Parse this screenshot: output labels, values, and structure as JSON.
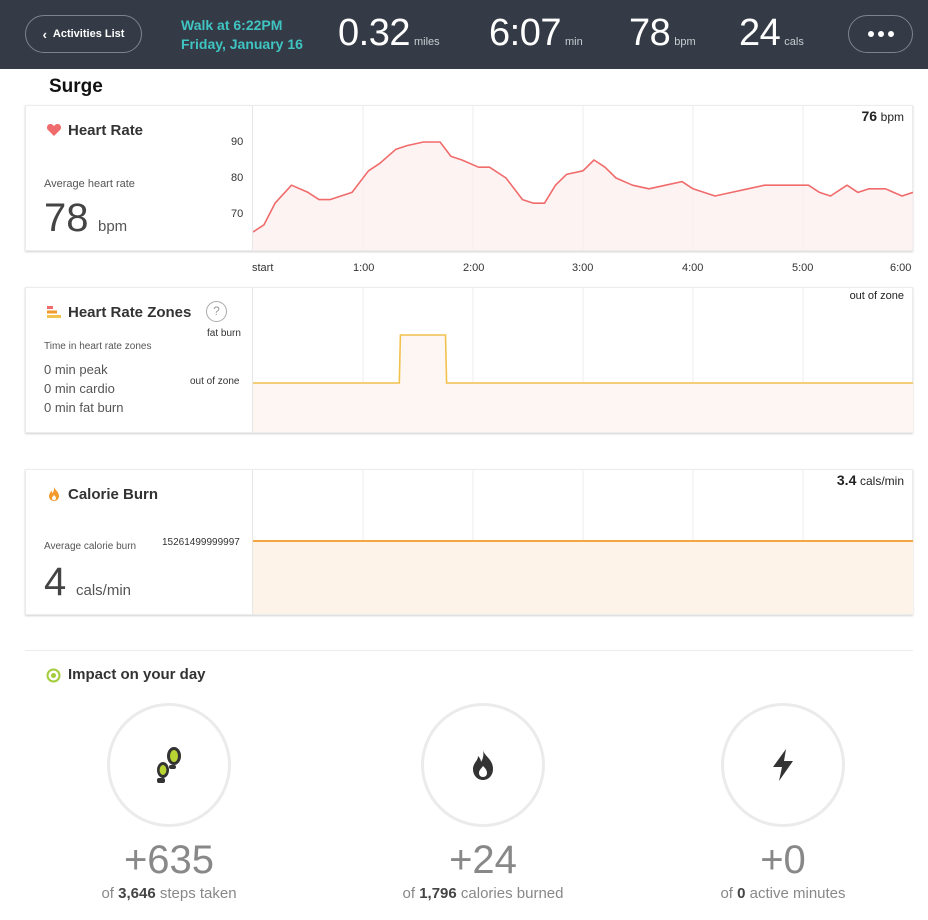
{
  "header": {
    "back_label": "Activities List",
    "title_line1": "Walk at 6:22PM",
    "title_line2": "Friday, January 16",
    "distance_value": "0.32",
    "distance_unit": "miles",
    "duration_value": "6:07",
    "duration_unit": "min",
    "hr_value": "78",
    "hr_unit": "bpm",
    "cal_value": "24",
    "cal_unit": "cals"
  },
  "device": "Surge",
  "heart_rate": {
    "title": "Heart Rate",
    "avg_label": "Average heart rate",
    "avg_value": "78",
    "avg_unit": "bpm",
    "current_value": "76",
    "current_unit": "bpm",
    "y_ticks": [
      "90",
      "80",
      "70"
    ],
    "x_ticks": [
      "start",
      "1:00",
      "2:00",
      "3:00",
      "4:00",
      "5:00",
      "6:00"
    ]
  },
  "zones": {
    "title": "Heart Rate Zones",
    "help": "?",
    "sub_label": "Time in heart rate zones",
    "peak": "0 min peak",
    "cardio": "0 min cardio",
    "fat_burn": "0 min fat burn",
    "y_ticks": [
      "fat burn",
      "out of zone"
    ],
    "current": "out of zone"
  },
  "calories": {
    "title": "Calorie Burn",
    "avg_label": "Average calorie burn",
    "avg_value": "4",
    "avg_unit": "cals/min",
    "y_tick": "15261499999997",
    "current_value": "3.4",
    "current_unit": "cals/min"
  },
  "impact": {
    "title": "Impact on your day",
    "items": [
      {
        "num": "+635",
        "pre": "of ",
        "bold": "3,646",
        "post": " steps taken"
      },
      {
        "num": "+24",
        "pre": "of ",
        "bold": "1,796",
        "post": " calories burned"
      },
      {
        "num": "+0",
        "pre": "of ",
        "bold": "0",
        "post": " active minutes"
      }
    ]
  },
  "colors": {
    "header_bg": "#343b46",
    "accent_teal": "#3fc4c2",
    "heart_line": "#f06b6b",
    "zone_line": "#f2c14e",
    "calorie_line": "#f39a2c"
  },
  "chart_data": [
    {
      "type": "line",
      "title": "Heart Rate",
      "x_label": "",
      "y_label": "",
      "x": [
        0,
        0.1,
        0.2,
        0.35,
        0.5,
        0.6,
        0.7,
        0.8,
        0.9,
        1.05,
        1.15,
        1.3,
        1.4,
        1.55,
        1.7,
        1.8,
        1.9,
        2.05,
        2.15,
        2.3,
        2.45,
        2.55,
        2.65,
        2.75,
        2.85,
        3.0,
        3.1,
        3.2,
        3.3,
        3.45,
        3.6,
        3.75,
        3.9,
        4.0,
        4.1,
        4.2,
        4.35,
        4.5,
        4.65,
        4.8,
        4.95,
        5.05,
        5.15,
        5.25,
        5.4,
        5.5,
        5.6,
        5.75,
        5.9,
        6.0
      ],
      "y": [
        65,
        67,
        73,
        78,
        76,
        74,
        74,
        75,
        76,
        82,
        84,
        88,
        89,
        90,
        90,
        86,
        85,
        83,
        83,
        80,
        74,
        73,
        73,
        78,
        81,
        82,
        85,
        83,
        80,
        78,
        77,
        78,
        79,
        77,
        76,
        75,
        76,
        77,
        78,
        78,
        78,
        78,
        76,
        75,
        78,
        76,
        77,
        77,
        75,
        76
      ],
      "yticks": [
        90,
        80,
        70
      ],
      "xticks": [
        "start",
        "1:00",
        "2:00",
        "3:00",
        "4:00",
        "5:00",
        "6:00"
      ]
    },
    {
      "type": "line",
      "title": "Heart Rate Zones",
      "x": [
        0,
        1.33,
        1.34,
        1.75,
        1.76,
        6.0
      ],
      "y": [
        "out of zone",
        "out of zone",
        "fat burn",
        "fat burn",
        "out of zone",
        "out of zone"
      ],
      "levels": [
        "out of zone",
        "fat burn"
      ]
    },
    {
      "type": "area",
      "title": "Calorie Burn",
      "x": [
        0,
        6.0
      ],
      "y": [
        3.4,
        3.4
      ]
    }
  ]
}
